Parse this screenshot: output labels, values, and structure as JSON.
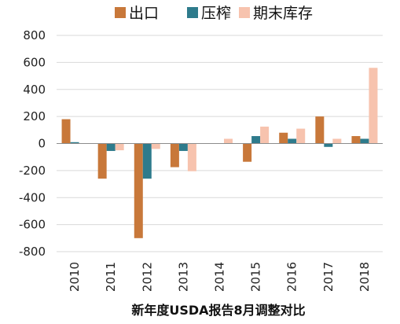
{
  "chart_data": {
    "type": "bar",
    "title": "",
    "xlabel": "新年度USDA报告8月调整对比",
    "ylabel": "",
    "ylim": [
      -800,
      800
    ],
    "yticks": [
      "800",
      "600",
      "400",
      "200",
      "0",
      "-200",
      "-400",
      "-600",
      "-800"
    ],
    "grid": "horizontal",
    "legend": "top",
    "categories": [
      "2010",
      "2011",
      "2012",
      "2013",
      "2014",
      "2015",
      "2016",
      "2017",
      "2018"
    ],
    "series": [
      {
        "name": "出口",
        "color": "#C8783A",
        "values": [
          180,
          -260,
          -700,
          -175,
          0,
          -135,
          80,
          200,
          55
        ]
      },
      {
        "name": "压榨",
        "color": "#2E7B8C",
        "values": [
          10,
          -55,
          -260,
          -55,
          0,
          55,
          35,
          -25,
          35
        ]
      },
      {
        "name": "期末库存",
        "color": "#F7C3AE",
        "values": [
          0,
          -50,
          -40,
          -205,
          35,
          125,
          110,
          35,
          560
        ]
      }
    ]
  }
}
